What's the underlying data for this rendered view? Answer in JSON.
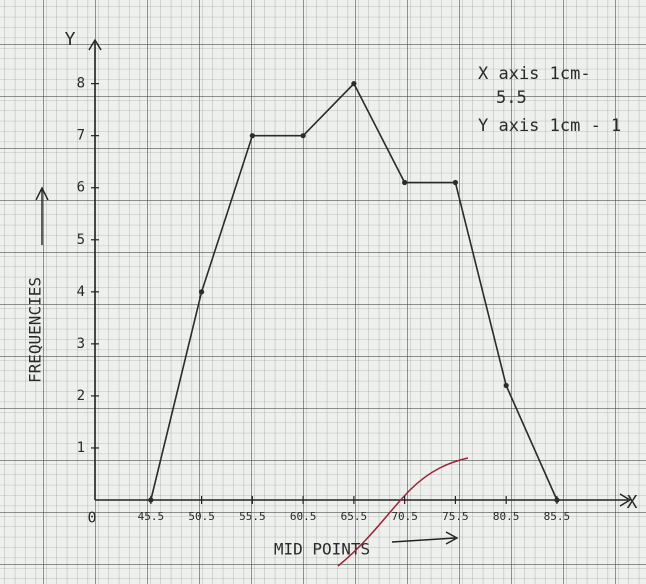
{
  "chart_data": {
    "type": "line",
    "x": [
      45.5,
      50.5,
      55.5,
      60.5,
      65.5,
      70.5,
      75.5,
      80.5,
      85.5
    ],
    "series": [
      {
        "color": "#2b2b2b",
        "values": [
          0,
          4,
          7,
          7,
          8,
          6.1,
          6.1,
          2.2,
          0
        ]
      }
    ],
    "xlim": [
      40,
      92.5
    ],
    "xticks": [
      45.5,
      50.5,
      55.5,
      60.5,
      65.5,
      70.5,
      75.5,
      80.5,
      85.5
    ],
    "ylim": [
      0,
      8.8
    ],
    "yticks": [
      1,
      2,
      3,
      4,
      5,
      6,
      7,
      8
    ],
    "origin_label": "0",
    "x_axis_letter": "X",
    "y_axis_letter": "Y",
    "xlabel": "MID POINTS",
    "ylabel": "FREQUENCIES",
    "annotations": [
      "X axis 1cm-",
      "5.5",
      "Y axis 1cm - 1"
    ]
  }
}
